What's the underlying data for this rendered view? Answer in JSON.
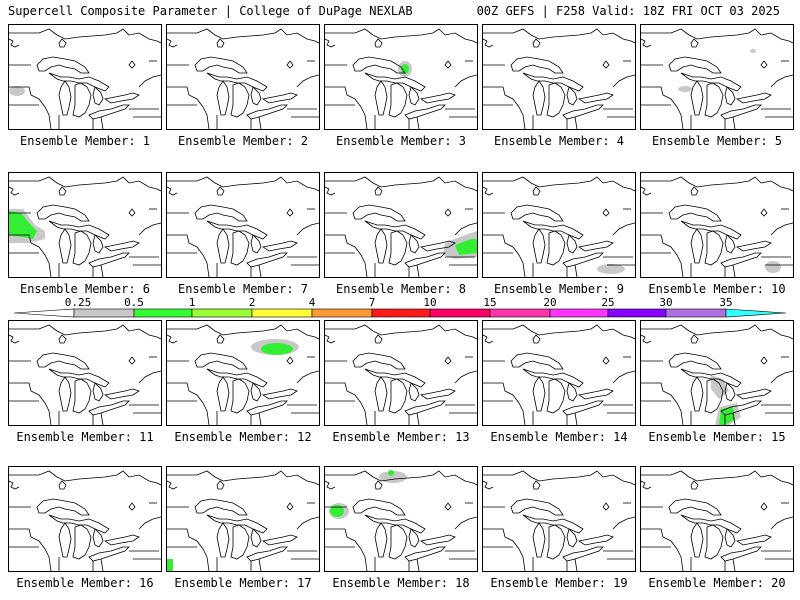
{
  "header": {
    "title_left": "Supercell Composite Parameter | College of DuPage NEXLAB",
    "title_right": "00Z GEFS | F258 Valid: 18Z FRI OCT 03 2025"
  },
  "legend": {
    "ticks": [
      "0.25",
      "0.5",
      "1",
      "2",
      "4",
      "7",
      "10",
      "15",
      "20",
      "25",
      "30",
      "35"
    ],
    "colors": [
      "#c8c8c8",
      "#33ff33",
      "#99ff33",
      "#ffff33",
      "#ff9933",
      "#ff1a1a",
      "#ff0066",
      "#ff33aa",
      "#ff33ff",
      "#8800ff",
      "#b070e0",
      "#33ffff"
    ]
  },
  "colors": {
    "light": "#c8c8c8",
    "green": "#33ee33",
    "line": "#000000"
  },
  "members": [
    {
      "label": "Ensemble Member: 1"
    },
    {
      "label": "Ensemble Member: 2"
    },
    {
      "label": "Ensemble Member: 3"
    },
    {
      "label": "Ensemble Member: 4"
    },
    {
      "label": "Ensemble Member: 5"
    },
    {
      "label": "Ensemble Member: 6"
    },
    {
      "label": "Ensemble Member: 7"
    },
    {
      "label": "Ensemble Member: 8"
    },
    {
      "label": "Ensemble Member: 9"
    },
    {
      "label": "Ensemble Member: 10"
    },
    {
      "label": "Ensemble Member: 11"
    },
    {
      "label": "Ensemble Member: 12"
    },
    {
      "label": "Ensemble Member: 13"
    },
    {
      "label": "Ensemble Member: 14"
    },
    {
      "label": "Ensemble Member: 15"
    },
    {
      "label": "Ensemble Member: 16"
    },
    {
      "label": "Ensemble Member: 17"
    },
    {
      "label": "Ensemble Member: 18"
    },
    {
      "label": "Ensemble Member: 19"
    },
    {
      "label": "Ensemble Member: 20"
    }
  ]
}
